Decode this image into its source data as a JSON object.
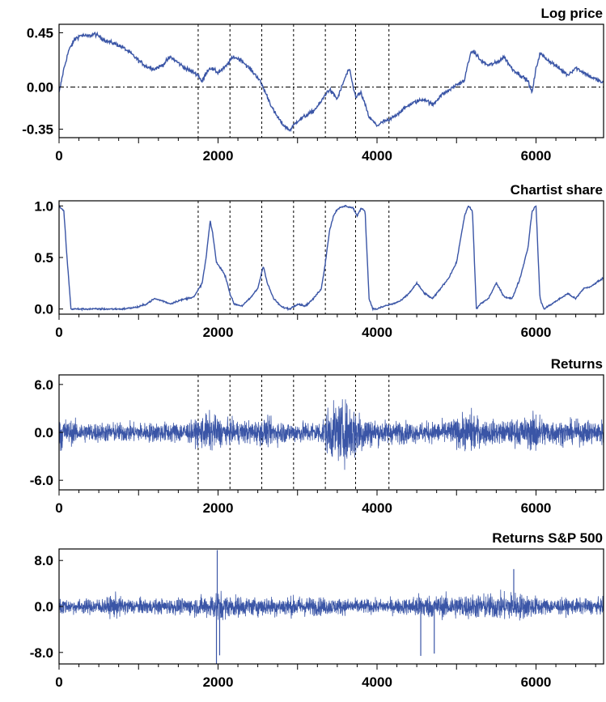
{
  "chart_data": [
    {
      "type": "line",
      "title": "Log price",
      "xlim": [
        0,
        6850
      ],
      "ylim": [
        -0.42,
        0.52
      ],
      "yticks": [
        0.45,
        0.0,
        -0.35
      ],
      "ytick_labels": [
        "0.45",
        "0.00",
        "-0.35"
      ],
      "xticks": [
        0,
        2000,
        4000,
        6000
      ],
      "xtick_labels": [
        "0",
        "2000",
        "4000",
        "6000"
      ],
      "reference_line": 0.0,
      "vlines": [
        1750,
        2150,
        2550,
        2950,
        3350,
        3730,
        4150
      ],
      "line_color": "#3a55a6",
      "series": [
        {
          "x": [
            0,
            60,
            120,
            200,
            280,
            360,
            450,
            500,
            600,
            700,
            800,
            900,
            1000,
            1100,
            1200,
            1300,
            1400,
            1500,
            1600,
            1700,
            1750,
            1800,
            1850,
            1900,
            2000,
            2100,
            2150,
            2200,
            2300,
            2400,
            2500,
            2550,
            2600,
            2700,
            2800,
            2900,
            2950,
            3000,
            3100,
            3200,
            3300,
            3350,
            3400,
            3500,
            3600,
            3650,
            3700,
            3730,
            3800,
            3900,
            4000,
            4100,
            4150,
            4200,
            4300,
            4400,
            4500,
            4600,
            4700,
            4800,
            4900,
            5000,
            5100,
            5150,
            5200,
            5250,
            5300,
            5400,
            5500,
            5600,
            5700,
            5800,
            5900,
            5950,
            6000,
            6050,
            6100,
            6200,
            6300,
            6400,
            6500,
            6600,
            6700,
            6800,
            6850
          ],
          "y": [
            -0.05,
            0.15,
            0.3,
            0.4,
            0.43,
            0.42,
            0.44,
            0.42,
            0.38,
            0.36,
            0.33,
            0.28,
            0.22,
            0.17,
            0.15,
            0.18,
            0.25,
            0.2,
            0.15,
            0.12,
            0.1,
            0.04,
            0.12,
            0.16,
            0.12,
            0.17,
            0.22,
            0.25,
            0.22,
            0.15,
            0.08,
            0.02,
            -0.05,
            -0.2,
            -0.3,
            -0.36,
            -0.32,
            -0.28,
            -0.24,
            -0.2,
            -0.12,
            -0.06,
            -0.02,
            -0.1,
            0.08,
            0.15,
            0.0,
            -0.08,
            -0.05,
            -0.25,
            -0.32,
            -0.28,
            -0.28,
            -0.25,
            -0.2,
            -0.15,
            -0.12,
            -0.1,
            -0.15,
            -0.07,
            -0.03,
            0.02,
            0.05,
            0.22,
            0.3,
            0.27,
            0.22,
            0.18,
            0.2,
            0.25,
            0.15,
            0.1,
            0.05,
            -0.05,
            0.15,
            0.28,
            0.25,
            0.2,
            0.15,
            0.1,
            0.16,
            0.12,
            0.08,
            0.05,
            0.03
          ]
        }
      ]
    },
    {
      "type": "line",
      "title": "Chartist share",
      "xlim": [
        0,
        6850
      ],
      "ylim": [
        -0.05,
        1.05
      ],
      "yticks": [
        1.0,
        0.5,
        0.0
      ],
      "ytick_labels": [
        "1.0",
        "0.5",
        "0.0"
      ],
      "xticks": [
        0,
        2000,
        4000,
        6000
      ],
      "xtick_labels": [
        "0",
        "2000",
        "4000",
        "6000"
      ],
      "vlines": [
        1750,
        2150,
        2550,
        2950,
        3350,
        3730,
        4150
      ],
      "line_color": "#3a55a6",
      "series": [
        {
          "x": [
            0,
            60,
            100,
            150,
            200,
            400,
            600,
            800,
            1000,
            1100,
            1200,
            1300,
            1400,
            1500,
            1600,
            1700,
            1800,
            1850,
            1900,
            1930,
            1980,
            2050,
            2100,
            2150,
            2200,
            2300,
            2400,
            2500,
            2570,
            2620,
            2700,
            2800,
            2900,
            3000,
            3100,
            3200,
            3300,
            3350,
            3400,
            3450,
            3500,
            3600,
            3700,
            3750,
            3800,
            3850,
            3900,
            3950,
            4000,
            4100,
            4200,
            4300,
            4400,
            4500,
            4600,
            4700,
            4800,
            4900,
            5000,
            5100,
            5150,
            5200,
            5250,
            5300,
            5400,
            5500,
            5600,
            5700,
            5800,
            5900,
            5950,
            6000,
            6050,
            6100,
            6200,
            6300,
            6400,
            6500,
            6600,
            6700,
            6800,
            6850
          ],
          "y": [
            1.0,
            0.95,
            0.5,
            0.0,
            0.0,
            0.0,
            0.0,
            0.0,
            0.02,
            0.05,
            0.1,
            0.08,
            0.05,
            0.08,
            0.1,
            0.12,
            0.25,
            0.5,
            0.85,
            0.75,
            0.45,
            0.38,
            0.3,
            0.15,
            0.05,
            0.03,
            0.1,
            0.2,
            0.42,
            0.25,
            0.1,
            0.02,
            0.0,
            0.05,
            0.03,
            0.1,
            0.2,
            0.45,
            0.75,
            0.9,
            0.97,
            1.0,
            0.98,
            0.9,
            0.98,
            0.95,
            0.1,
            0.0,
            0.0,
            0.03,
            0.05,
            0.08,
            0.15,
            0.25,
            0.15,
            0.1,
            0.2,
            0.3,
            0.45,
            0.9,
            1.0,
            0.95,
            0.0,
            0.05,
            0.1,
            0.25,
            0.12,
            0.1,
            0.3,
            0.6,
            0.95,
            1.0,
            0.1,
            0.0,
            0.05,
            0.1,
            0.15,
            0.1,
            0.2,
            0.22,
            0.28,
            0.3
          ]
        }
      ]
    },
    {
      "type": "line",
      "title": "Returns",
      "xlim": [
        0,
        6850
      ],
      "ylim": [
        -7.2,
        7.2
      ],
      "yticks": [
        6.0,
        0.0,
        -6.0
      ],
      "ytick_labels": [
        "6.0",
        "0.0",
        "-6.0"
      ],
      "xticks": [
        0,
        2000,
        4000,
        6000
      ],
      "xtick_labels": [
        "0",
        "2000",
        "4000",
        "6000"
      ],
      "vlines": [
        1750,
        2150,
        2550,
        2950,
        3350,
        3730,
        4150
      ],
      "line_color": "#3a55a6",
      "volatility": {
        "x": [
          0,
          100,
          300,
          1000,
          1700,
          1800,
          1900,
          2000,
          2100,
          2500,
          2600,
          2900,
          3300,
          3400,
          3500,
          3600,
          3700,
          3800,
          3900,
          4000,
          4200,
          4500,
          4800,
          5000,
          5100,
          5200,
          5300,
          5600,
          5900,
          6000,
          6100,
          6400,
          6850
        ],
        "amplitude": [
          3.5,
          2.0,
          1.6,
          1.5,
          1.7,
          2.6,
          3.0,
          2.4,
          1.8,
          1.9,
          2.2,
          1.6,
          1.8,
          4.0,
          4.5,
          4.8,
          4.5,
          3.5,
          2.4,
          1.9,
          1.8,
          1.6,
          1.7,
          2.2,
          2.8,
          3.5,
          2.0,
          1.8,
          2.4,
          3.5,
          2.2,
          1.8,
          2.0
        ]
      }
    },
    {
      "type": "line",
      "title": "Returns  S&P 500",
      "xlim": [
        0,
        6850
      ],
      "ylim": [
        -10.0,
        10.0
      ],
      "yticks": [
        8.0,
        0.0,
        -8.0
      ],
      "ytick_labels": [
        "8.0",
        "0.0",
        "-8.0"
      ],
      "xticks": [
        0,
        2000,
        4000,
        6000
      ],
      "xtick_labels": [
        "0",
        "2000",
        "4000",
        "6000"
      ],
      "line_color": "#3a55a6",
      "volatility": {
        "x": [
          0,
          100,
          600,
          700,
          800,
          1200,
          1600,
          1900,
          2000,
          2100,
          2400,
          3000,
          3500,
          4000,
          4400,
          4500,
          4700,
          5000,
          5500,
          5700,
          5900,
          6100,
          6850
        ],
        "amplitude": [
          2.5,
          1.5,
          1.8,
          2.8,
          1.8,
          1.6,
          1.8,
          2.5,
          3.5,
          2.5,
          2.0,
          2.2,
          1.8,
          1.5,
          1.8,
          2.8,
          2.4,
          2.6,
          2.8,
          3.2,
          2.6,
          1.8,
          1.6
        ]
      },
      "spikes": [
        {
          "x": 1990,
          "y": 9.8
        },
        {
          "x": 1980,
          "y": -10.0
        },
        {
          "x": 2020,
          "y": -8.5
        },
        {
          "x": 4550,
          "y": -8.6
        },
        {
          "x": 4720,
          "y": -8.2
        },
        {
          "x": 5720,
          "y": 6.5
        }
      ]
    }
  ]
}
